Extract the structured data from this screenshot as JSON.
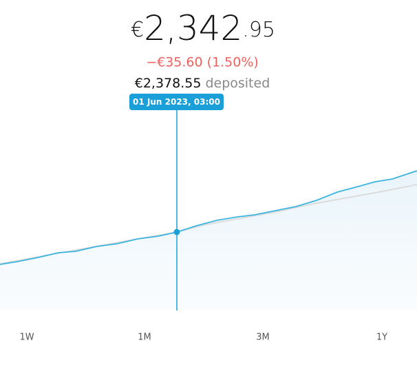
{
  "balance": {
    "currency": "€",
    "whole": "2,342",
    "fraction": ".95"
  },
  "change": "−€35.60 (1.50%)",
  "deposited": {
    "amount": "€2,378.55",
    "label": "deposited"
  },
  "tooltip": "01 Jun 2023, 03:00",
  "periods": [
    "1W",
    "1M",
    "3M",
    "1Y"
  ]
}
